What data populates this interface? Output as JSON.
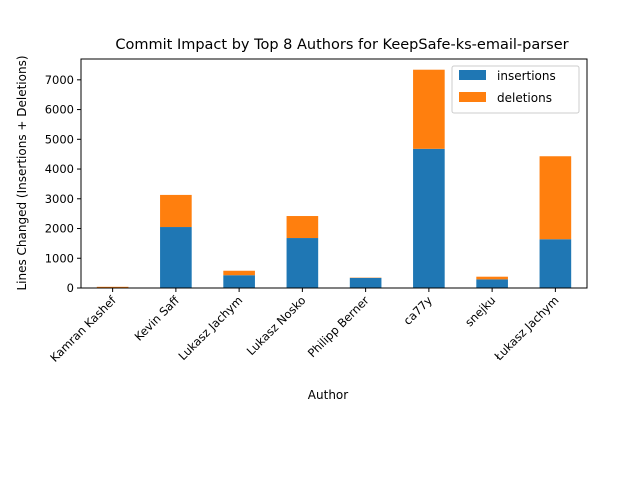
{
  "chart_data": {
    "type": "bar",
    "stacked": true,
    "title": "Commit Impact by Top 8 Authors for KeepSafe-ks-email-parser",
    "xlabel": "Author",
    "ylabel": "Lines Changed (Insertions + Deletions)",
    "categories": [
      "Kamran Kashef",
      "Kevin Saff",
      "Lukasz Jachym",
      "Lukasz Nosko",
      "Philipp Berner",
      "ca77y",
      "snejku",
      "Łukasz Jachym"
    ],
    "series": [
      {
        "name": "insertions",
        "color": "#1f77b4",
        "values": [
          10,
          2050,
          430,
          1680,
          340,
          4680,
          290,
          1640
        ]
      },
      {
        "name": "deletions",
        "color": "#ff7f0e",
        "values": [
          30,
          1080,
          150,
          740,
          10,
          2660,
          90,
          2790
        ]
      }
    ],
    "ylim": [
      0,
      7700
    ],
    "yticks": [
      0,
      1000,
      2000,
      3000,
      4000,
      5000,
      6000,
      7000
    ],
    "ytick_labels": [
      "0",
      "1000",
      "2000",
      "3000",
      "4000",
      "5000",
      "6000",
      "7000"
    ],
    "grid": false,
    "legend_position": "top-right"
  }
}
